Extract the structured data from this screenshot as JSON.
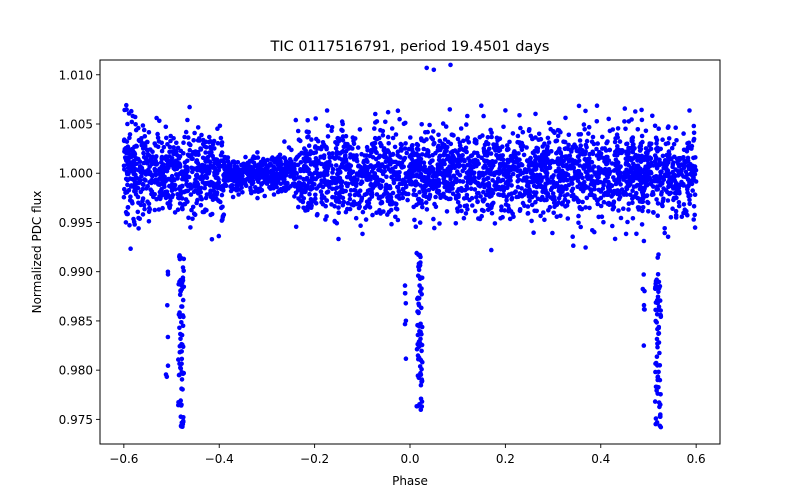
{
  "chart_data": {
    "type": "scatter",
    "title": "TIC 0117516791, period 19.4501 days",
    "xlabel": "Phase",
    "ylabel": "Normalized PDC flux",
    "xlim": [
      -0.65,
      0.65
    ],
    "ylim": [
      0.9725,
      1.0115
    ],
    "xticks": [
      -0.6,
      -0.4,
      -0.2,
      0.0,
      0.2,
      0.4,
      0.6
    ],
    "xtick_labels": [
      "−0.6",
      "−0.4",
      "−0.2",
      "0.0",
      "0.2",
      "0.4",
      "0.6"
    ],
    "yticks": [
      0.975,
      0.98,
      0.985,
      0.99,
      0.995,
      1.0,
      1.005,
      1.01
    ],
    "ytick_labels": [
      "0.975",
      "0.980",
      "0.985",
      "0.990",
      "0.995",
      "1.000",
      "1.005",
      "1.010"
    ],
    "grid": false,
    "point_color": "#0000ff",
    "series": [
      {
        "name": "flux",
        "baseline": 1.0,
        "phase_range": [
          -0.6,
          0.6
        ],
        "scatter_sigma": 0.0022,
        "max_flux": 1.011,
        "transits": [
          {
            "phase_center": -0.48,
            "min_flux": 0.974
          },
          {
            "phase_center": 0.02,
            "min_flux": 0.9755
          },
          {
            "phase_center": 0.52,
            "min_flux": 0.974
          }
        ],
        "quiet_segment": {
          "phase_range": [
            -0.39,
            -0.24
          ],
          "sigma": 0.0009
        }
      }
    ]
  }
}
